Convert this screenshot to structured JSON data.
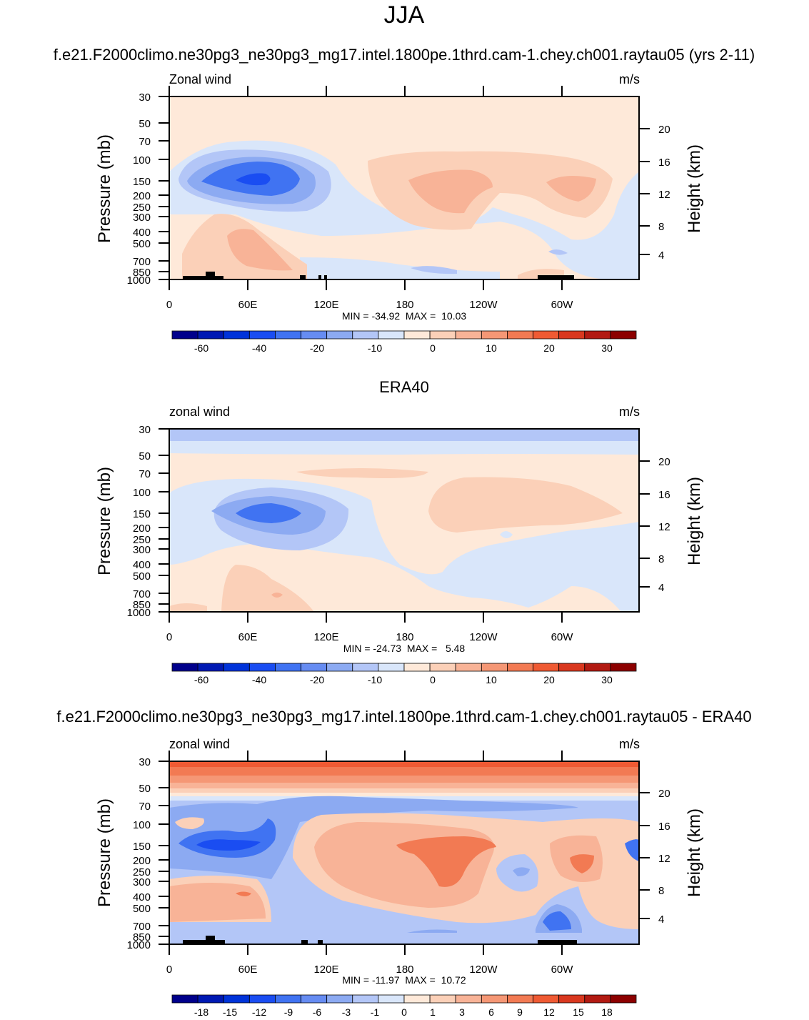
{
  "figure": {
    "title": "JJA"
  },
  "colormaps": {
    "wind": [
      "#00008b",
      "#0019b3",
      "#0033d9",
      "#1a4df2",
      "#4073f2",
      "#668cf2",
      "#8caaf2",
      "#b3c6f7",
      "#d9e6fa",
      "#fee9d9",
      "#fbd0b8",
      "#f8b397",
      "#f59775",
      "#f27a53",
      "#ef5a33",
      "#d9381f",
      "#b21a12",
      "#8c0000"
    ],
    "diff": [
      "#00008b",
      "#0019b3",
      "#0033d9",
      "#1a4df2",
      "#4073f2",
      "#668cf2",
      "#8caaf2",
      "#b3c6f7",
      "#d9e6fa",
      "#fee9d9",
      "#fbd0b8",
      "#f8b397",
      "#f59775",
      "#f27a53",
      "#ef5a33",
      "#d9381f",
      "#b21a12",
      "#8c0000"
    ]
  },
  "chart_data": [
    {
      "type": "heatmap",
      "title": "f.e21.F2000climo.ne30pg3_ne30pg3_mg17.intel.1800pe.1thrd.cam-1.chey.ch001.raytau05 (yrs 2-11)",
      "left_label": "Zonal wind",
      "right_label": "m/s",
      "ylabel": "Pressure (mb)",
      "y2label": "Height (km)",
      "x_ticks": [
        "0",
        "60E",
        "120E",
        "180",
        "120W",
        "60W"
      ],
      "y_ticks": [
        "30",
        "50",
        "70",
        "100",
        "150",
        "200",
        "250",
        "300",
        "400",
        "500",
        "700",
        "850",
        "1000"
      ],
      "y2_ticks": [
        "20",
        "16",
        "12",
        "8",
        "4"
      ],
      "stats": "MIN = -34.92  MAX =  10.03",
      "colorbar_labels": [
        "-60",
        "-40",
        "-20",
        "-10",
        "0",
        "10",
        "20",
        "30"
      ],
      "colormap": "wind"
    },
    {
      "type": "heatmap",
      "title": "ERA40",
      "left_label": "zonal wind",
      "right_label": "m/s",
      "ylabel": "Pressure (mb)",
      "y2label": "Height (km)",
      "x_ticks": [
        "0",
        "60E",
        "120E",
        "180",
        "120W",
        "60W"
      ],
      "y_ticks": [
        "30",
        "50",
        "70",
        "100",
        "150",
        "200",
        "250",
        "300",
        "400",
        "500",
        "700",
        "850",
        "1000"
      ],
      "y2_ticks": [
        "20",
        "16",
        "12",
        "8",
        "4"
      ],
      "stats": "MIN = -24.73  MAX =   5.48",
      "colorbar_labels": [
        "-60",
        "-40",
        "-20",
        "-10",
        "0",
        "10",
        "20",
        "30"
      ],
      "colormap": "wind"
    },
    {
      "type": "heatmap",
      "title": "f.e21.F2000climo.ne30pg3_ne30pg3_mg17.intel.1800pe.1thrd.cam-1.chey.ch001.raytau05 - ERA40",
      "left_label": "zonal wind",
      "right_label": "m/s",
      "ylabel": "Pressure (mb)",
      "y2label": "Height (km)",
      "x_ticks": [
        "0",
        "60E",
        "120E",
        "180",
        "120W",
        "60W"
      ],
      "y_ticks": [
        "30",
        "50",
        "70",
        "100",
        "150",
        "200",
        "250",
        "300",
        "400",
        "500",
        "700",
        "850",
        "1000"
      ],
      "y2_ticks": [
        "20",
        "16",
        "12",
        "8",
        "4"
      ],
      "stats": "MIN = -11.97  MAX =  10.72",
      "colorbar_labels": [
        "-18",
        "-15",
        "-12",
        "-9",
        "-6",
        "-3",
        "-1",
        "0",
        "1",
        "3",
        "6",
        "9",
        "12",
        "15",
        "18"
      ],
      "colormap": "diff"
    }
  ]
}
